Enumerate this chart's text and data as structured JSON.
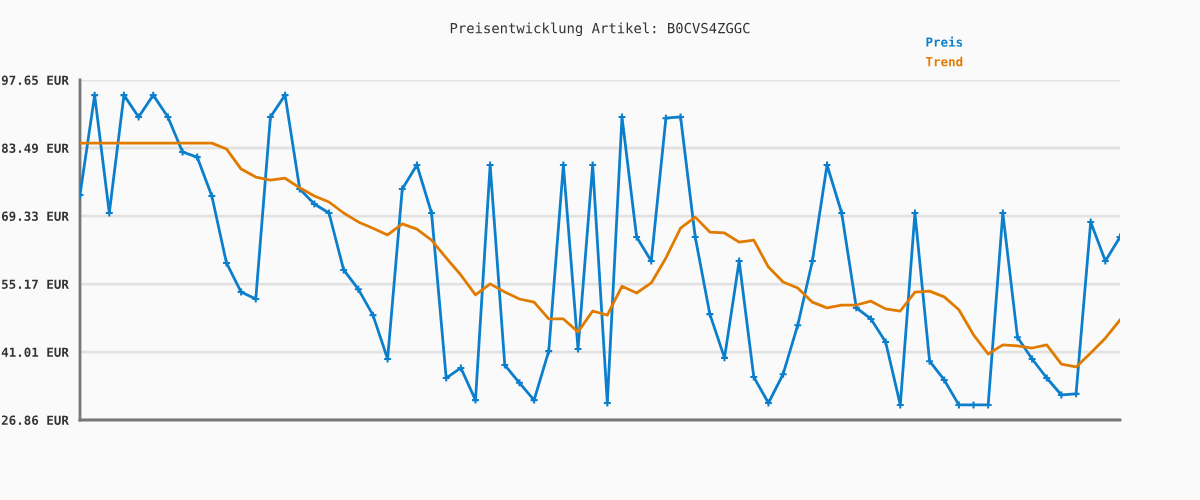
{
  "chart_data": {
    "type": "line",
    "title": "Preisentwicklung Artikel: B0CVS4ZGGC",
    "categories": [
      null,
      null,
      null,
      null,
      null,
      null,
      null,
      null,
      null,
      null,
      null,
      null,
      null,
      null,
      null,
      null,
      null,
      null,
      null,
      null,
      null,
      null,
      null,
      null,
      null,
      null,
      null,
      null,
      null,
      null,
      null,
      null,
      null,
      null,
      null,
      null,
      null,
      null,
      null,
      null,
      null,
      null,
      null,
      null,
      null,
      null,
      null,
      null,
      null,
      null,
      null,
      null,
      null,
      null,
      null,
      null,
      null,
      null,
      null,
      null,
      null,
      null,
      null,
      null,
      null,
      null,
      null,
      null,
      null,
      null,
      null,
      null
    ],
    "series": [
      {
        "name": "Preis",
        "color": "#0b7fcb",
        "marker": "cross",
        "values": [
          73.7,
          94.5,
          69.96,
          94.5,
          89.95,
          94.5,
          89.95,
          82.66,
          81.6,
          73.5,
          59.55,
          53.5,
          52.05,
          89.95,
          94.5,
          74.96,
          71.83,
          69.96,
          58.1,
          54.1,
          48.7,
          39.56,
          74.96,
          79.95,
          69.96,
          35.6,
          37.7,
          31.0,
          79.95,
          38.3,
          34.6,
          31.0,
          41.2,
          79.95,
          41.65,
          79.95,
          30.4,
          89.95,
          64.96,
          59.96,
          89.7,
          89.95,
          64.96,
          48.9,
          39.8,
          59.96,
          35.8,
          30.4,
          36.4,
          46.6,
          59.96,
          79.95,
          69.96,
          50.2,
          47.9,
          43.1,
          30.0,
          69.96,
          39.1,
          35.2,
          30.0,
          30.0,
          30.0,
          69.96,
          44.1,
          39.56,
          35.6,
          32.07,
          32.3,
          68.1,
          59.96,
          64.96
        ]
      },
      {
        "name": "Trend",
        "color": "#e07b00",
        "marker": "none",
        "values": [
          84.5,
          84.5,
          84.5,
          84.5,
          84.5,
          84.5,
          84.5,
          84.5,
          84.5,
          84.5,
          83.3,
          79.1,
          77.45,
          76.8,
          77.2,
          75.2,
          73.5,
          72.25,
          69.96,
          68.1,
          66.8,
          65.4,
          67.7,
          66.6,
          64.3,
          60.6,
          57.05,
          52.9,
          55.2,
          53.5,
          52.05,
          51.4,
          47.9,
          47.9,
          45.2,
          49.55,
          48.7,
          54.7,
          53.3,
          55.4,
          60.6,
          66.8,
          69.1,
          66.0,
          65.8,
          63.9,
          64.3,
          58.7,
          55.6,
          54.35,
          51.4,
          50.2,
          50.8,
          50.8,
          51.6,
          50.0,
          49.55,
          53.5,
          53.7,
          52.5,
          49.8,
          44.6,
          40.6,
          42.5,
          42.3,
          41.85,
          42.5,
          38.5,
          37.9,
          40.8,
          43.9,
          47.7
        ]
      }
    ],
    "ylim": [
      26.86,
      97.65
    ],
    "yticks": [
      {
        "value": 26.86,
        "label": "26.86 EUR"
      },
      {
        "value": 41.01,
        "label": "41.01 EUR"
      },
      {
        "value": 55.17,
        "label": "55.17 EUR"
      },
      {
        "value": 69.33,
        "label": "69.33 EUR"
      },
      {
        "value": 83.49,
        "label": "83.49 EUR"
      },
      {
        "value": 97.65,
        "label": "97.65 EUR"
      }
    ],
    "grid": "y",
    "legend": "top right",
    "line_style": "solid"
  }
}
